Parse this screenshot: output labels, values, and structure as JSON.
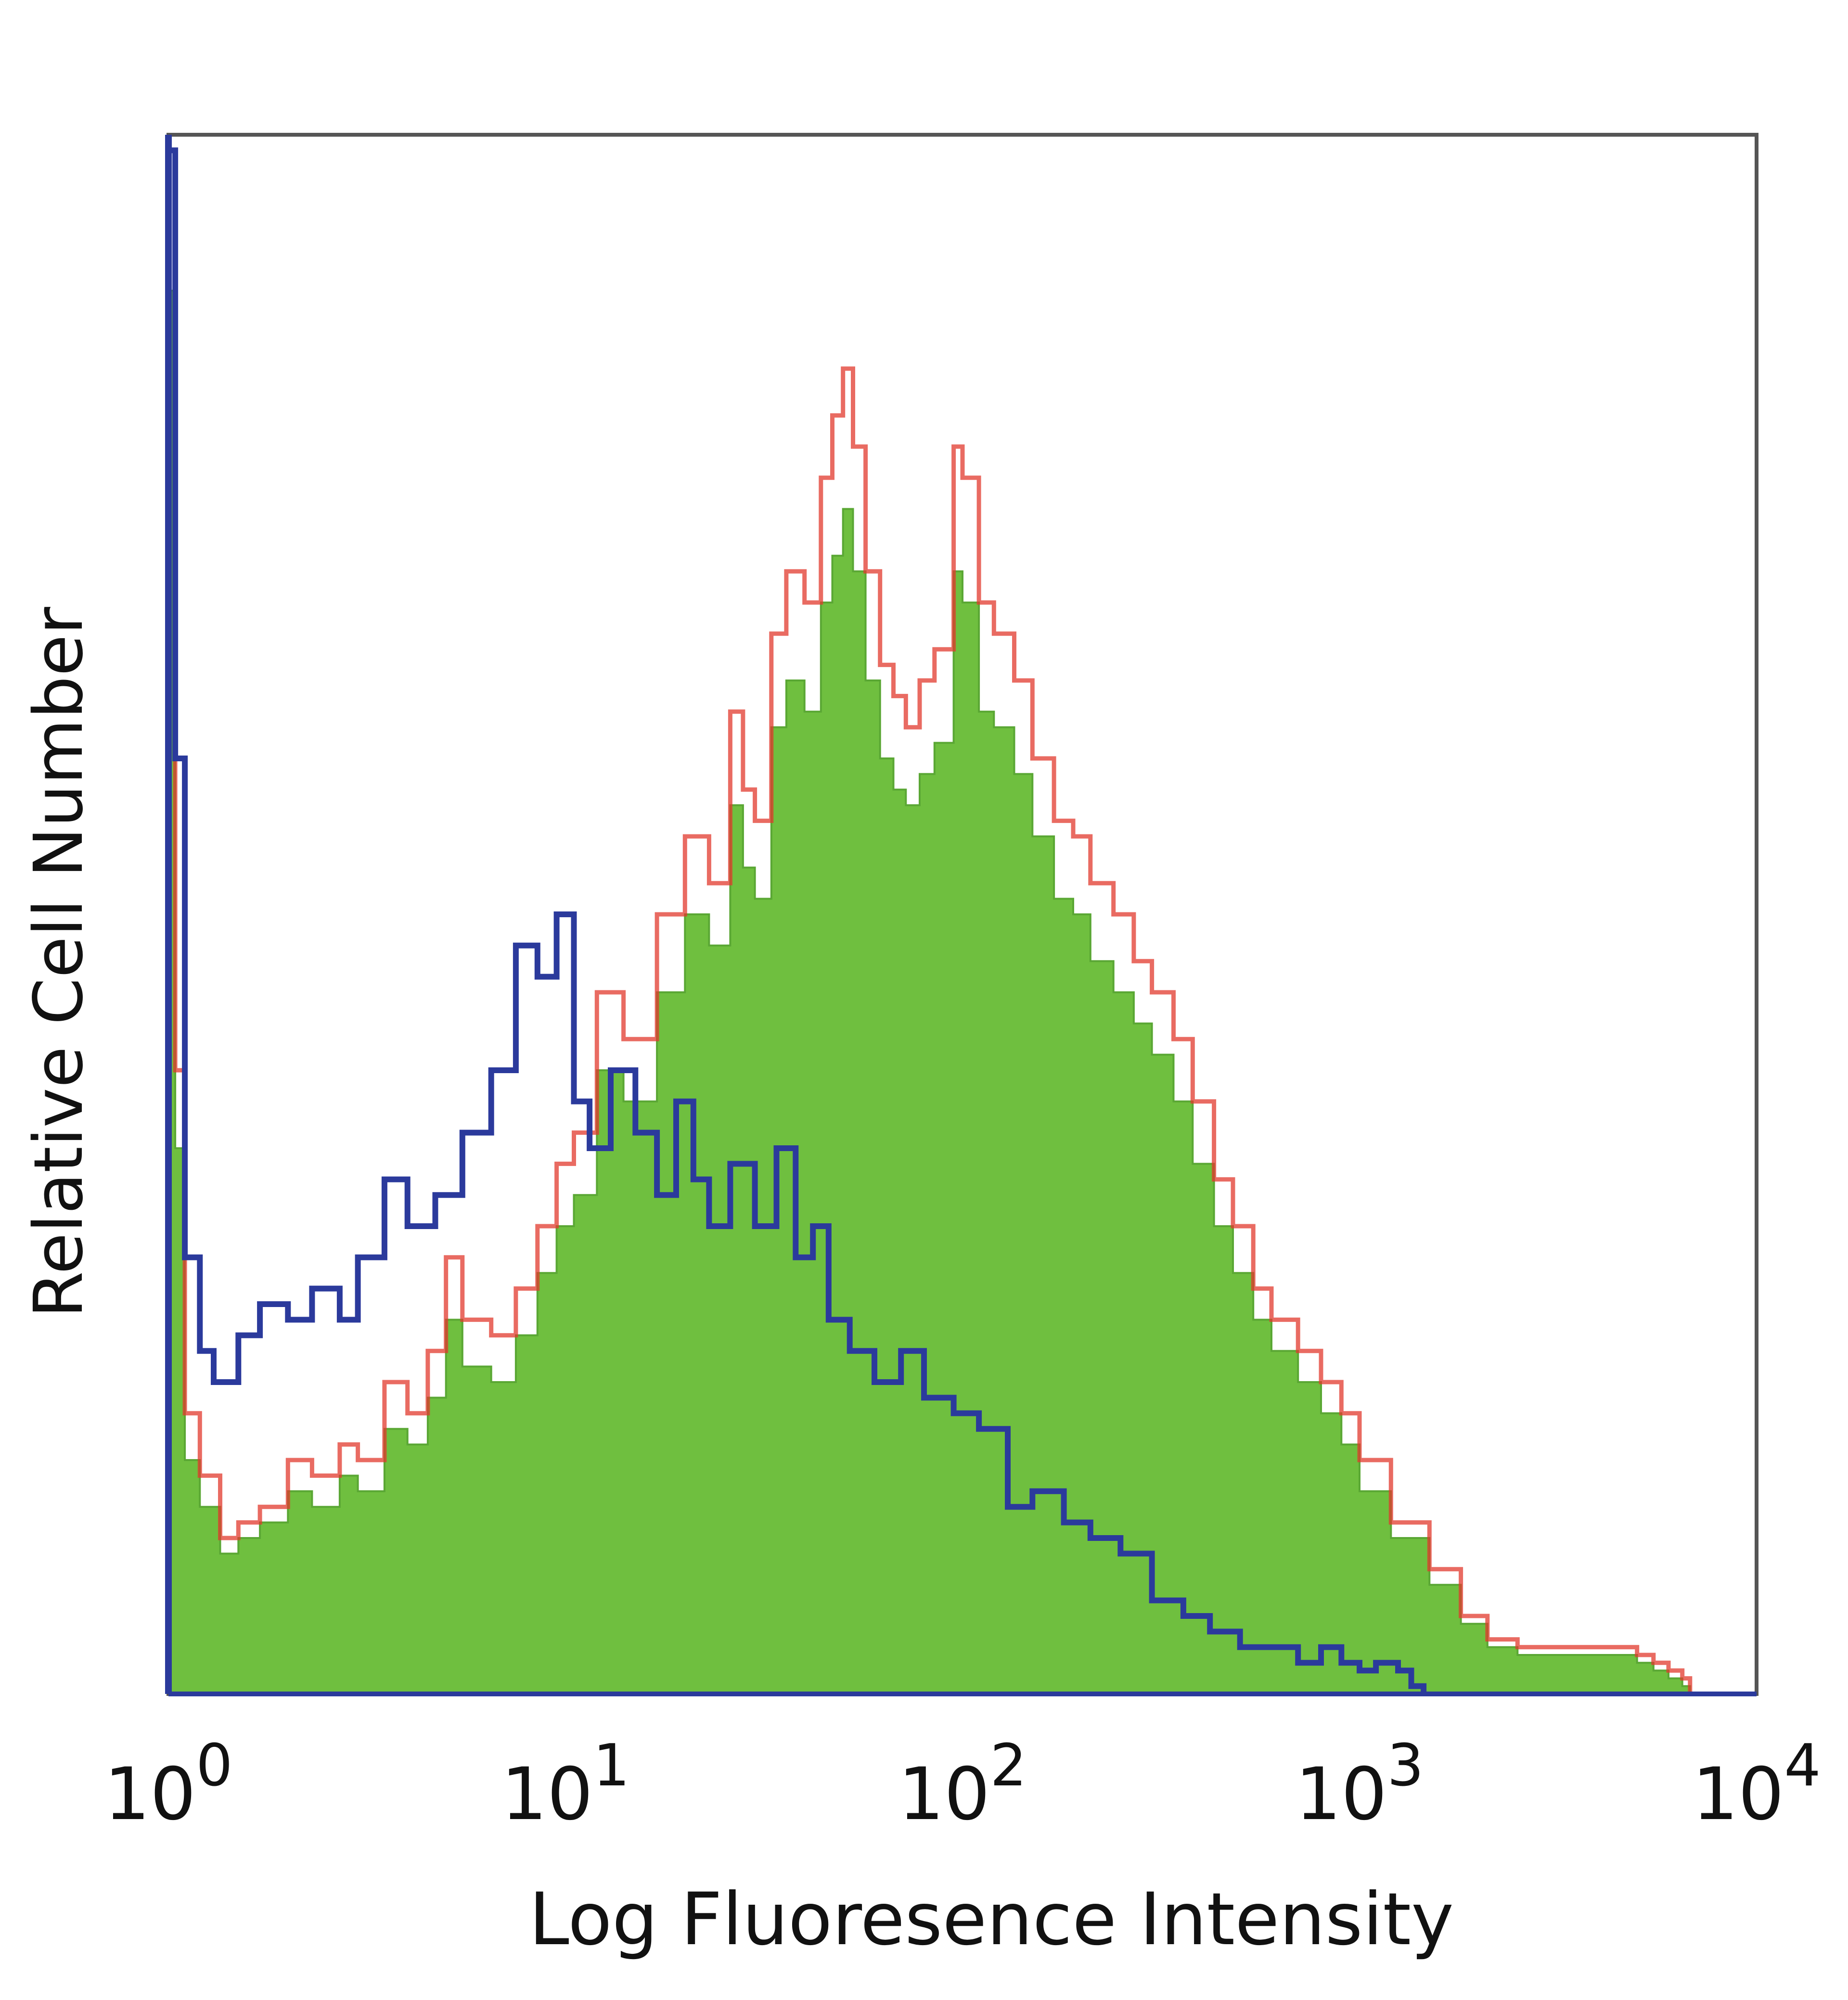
{
  "chart_data": {
    "type": "histogram",
    "xlabel": "Log Fluoresence Intensity",
    "ylabel": "Relative Cell Number",
    "x_scale": "log",
    "xlim": [
      1,
      10000
    ],
    "ylim": [
      0,
      100
    ],
    "x_ticks": [
      {
        "value": 1,
        "base": "10",
        "exp": "0"
      },
      {
        "value": 10,
        "base": "10",
        "exp": "1"
      },
      {
        "value": 100,
        "base": "10",
        "exp": "2"
      },
      {
        "value": 1000,
        "base": "10",
        "exp": "3"
      },
      {
        "value": 10000,
        "base": "10",
        "exp": "4"
      }
    ],
    "grid": false,
    "colors": {
      "blue": "#2b3a9c",
      "red": "#e23a2e",
      "green": "#6fbf3f",
      "frame": "#555555"
    },
    "series": [
      {
        "style": "blue-outline",
        "x": [
          1.0,
          1.04,
          1.1,
          1.2,
          1.3,
          1.5,
          1.7,
          2.0,
          2.3,
          2.7,
          3.0,
          3.5,
          4.0,
          4.7,
          5.5,
          6.5,
          7.5,
          8.5,
          9.5,
          10.5,
          11.5,
          13,
          15,
          17,
          19,
          21,
          23,
          26,
          30,
          34,
          38,
          42,
          46,
          52,
          60,
          70,
          80,
          95,
          110,
          130,
          150,
          180,
          210,
          250,
          300,
          360,
          420,
          500,
          600,
          700,
          800,
          900,
          1000,
          1100,
          1250,
          1350,
          1450
        ],
        "values": [
          99,
          60,
          28,
          22,
          20,
          23,
          25,
          24,
          26,
          24,
          28,
          33,
          30,
          32,
          36,
          40,
          48,
          46,
          50,
          38,
          35,
          40,
          36,
          32,
          38,
          33,
          30,
          34,
          30,
          35,
          28,
          30,
          24,
          22,
          20,
          22,
          19,
          18,
          17,
          12,
          13,
          11,
          10,
          9,
          6,
          5,
          4,
          3,
          3,
          2,
          3,
          2,
          1.5,
          2,
          1.5,
          0.5,
          0
        ]
      },
      {
        "style": "red-outline",
        "x": [
          1.0,
          1.04,
          1.1,
          1.2,
          1.35,
          1.5,
          1.7,
          2.0,
          2.3,
          2.7,
          3.0,
          3.5,
          4.0,
          4.5,
          5.0,
          5.5,
          6.5,
          7.5,
          8.5,
          9.5,
          10.5,
          12,
          14,
          17,
          20,
          23,
          26,
          28,
          30,
          33,
          36,
          40,
          44,
          47,
          50,
          53,
          57,
          62,
          67,
          72,
          78,
          85,
          95,
          100,
          110,
          120,
          135,
          150,
          170,
          190,
          210,
          240,
          270,
          300,
          340,
          380,
          430,
          480,
          540,
          600,
          700,
          800,
          900,
          1000,
          1200,
          1500,
          1800,
          2100,
          2500,
          3000,
          3500,
          4000,
          4500,
          5000,
          5500,
          6000,
          6500,
          6800
        ],
        "values": [
          99,
          40,
          18,
          14,
          10,
          11,
          12,
          15,
          14,
          16,
          15,
          20,
          18,
          22,
          28,
          24,
          23,
          26,
          30,
          34,
          36,
          45,
          42,
          50,
          55,
          52,
          63,
          58,
          56,
          68,
          72,
          70,
          78,
          82,
          85,
          80,
          72,
          66,
          64,
          62,
          65,
          67,
          80,
          78,
          70,
          68,
          65,
          60,
          56,
          55,
          52,
          50,
          47,
          45,
          42,
          38,
          33,
          30,
          26,
          24,
          22,
          20,
          18,
          15,
          11,
          8,
          5,
          3.5,
          3,
          3,
          3,
          3,
          3,
          2.5,
          2,
          1.5,
          1,
          0
        ]
      },
      {
        "style": "green-fill",
        "x": [
          1.0,
          1.04,
          1.1,
          1.2,
          1.35,
          1.5,
          1.7,
          2.0,
          2.3,
          2.7,
          3.0,
          3.5,
          4.0,
          4.5,
          5.0,
          5.5,
          6.5,
          7.5,
          8.5,
          9.5,
          10.5,
          12,
          14,
          17,
          20,
          23,
          26,
          28,
          30,
          33,
          36,
          40,
          44,
          47,
          50,
          53,
          57,
          62,
          67,
          72,
          78,
          85,
          95,
          100,
          110,
          120,
          135,
          150,
          170,
          190,
          210,
          240,
          270,
          300,
          340,
          380,
          430,
          480,
          540,
          600,
          700,
          800,
          900,
          1000,
          1200,
          1500,
          1800,
          2100,
          2500,
          3000,
          3500,
          4000,
          4500,
          5000,
          5500,
          6000,
          6500,
          6800
        ],
        "values": [
          90,
          35,
          15,
          12,
          9,
          10,
          11,
          13,
          12,
          14,
          13,
          17,
          16,
          19,
          24,
          21,
          20,
          23,
          27,
          30,
          32,
          40,
          38,
          45,
          50,
          48,
          57,
          53,
          51,
          62,
          65,
          63,
          70,
          73,
          76,
          72,
          65,
          60,
          58,
          57,
          59,
          61,
          72,
          70,
          63,
          62,
          59,
          55,
          51,
          50,
          47,
          45,
          43,
          41,
          38,
          34,
          30,
          27,
          24,
          22,
          20,
          18,
          16,
          13,
          10,
          7,
          4.5,
          3,
          2.5,
          2.5,
          2.5,
          2.5,
          2.5,
          2,
          1.5,
          1,
          0.5,
          0
        ]
      }
    ]
  }
}
